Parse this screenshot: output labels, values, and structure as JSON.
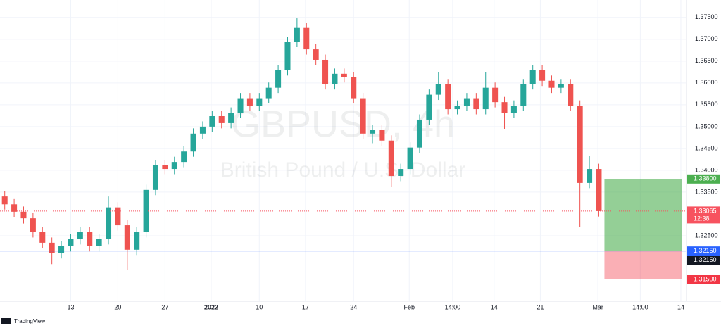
{
  "chart_data": {
    "type": "candlestick",
    "title": "GBPUSD, 4h",
    "subtitle": "British Pound / U.S. Dollar",
    "x": [
      0.5,
      1.5,
      2.5,
      3.5,
      4.5,
      5.5,
      6.5,
      7.5,
      8.5,
      9.5,
      10.5,
      11.5,
      12.5,
      13.5,
      14.5,
      15.5,
      16.5,
      17.5,
      18.5,
      19.5,
      20.5,
      21.5,
      22.5,
      23.5,
      24.5,
      25.5,
      26.5,
      27.5,
      28.5,
      29.5,
      30.5,
      31.5,
      32.5,
      33.5,
      34.5,
      35.5,
      36.5,
      37.5,
      38.5,
      39.5,
      40.5,
      41.5,
      42.5,
      43.5,
      44.5,
      45.5,
      46.5,
      47.5,
      48.5,
      49.5,
      50.5,
      51.5,
      52.5,
      53.5,
      54.5,
      55.5,
      56.5,
      57.5,
      58.5,
      59.5,
      60.5,
      61.5,
      62.5,
      63.5
    ],
    "open": [
      1.334,
      1.3322,
      1.3305,
      1.329,
      1.3258,
      1.3234,
      1.321,
      1.3226,
      1.3242,
      1.3258,
      1.3226,
      1.3242,
      1.3315,
      1.3274,
      1.3218,
      1.3258,
      1.3355,
      1.3412,
      1.3403,
      1.3419,
      1.3443,
      1.3484,
      1.35,
      1.3524,
      1.3508,
      1.3532,
      1.3565,
      1.3548,
      1.3565,
      1.3589,
      1.3629,
      1.3694,
      1.3726,
      1.3677,
      1.3653,
      1.3597,
      1.3621,
      1.3613,
      1.3565,
      1.3484,
      1.3492,
      1.3468,
      1.3387,
      1.3403,
      1.3452,
      1.3516,
      1.3573,
      1.3597,
      1.354,
      1.3548,
      1.3565,
      1.354,
      1.3589,
      1.3556,
      1.3532,
      1.3548,
      1.3597,
      1.3629,
      1.3605,
      1.3589,
      1.3597,
      1.3548,
      1.3371,
      1.3403
    ],
    "high": [
      1.3352,
      1.3334,
      1.3317,
      1.3302,
      1.327,
      1.3246,
      1.3238,
      1.3254,
      1.327,
      1.327,
      1.3254,
      1.334,
      1.3327,
      1.3286,
      1.327,
      1.3367,
      1.3424,
      1.3424,
      1.3431,
      1.3455,
      1.3496,
      1.3512,
      1.3536,
      1.3536,
      1.3544,
      1.3577,
      1.3577,
      1.3577,
      1.3601,
      1.3641,
      1.3706,
      1.3748,
      1.3738,
      1.3689,
      1.3665,
      1.3633,
      1.3633,
      1.3625,
      1.3577,
      1.3504,
      1.3504,
      1.348,
      1.3415,
      1.3464,
      1.3528,
      1.3585,
      1.3625,
      1.3609,
      1.356,
      1.3577,
      1.3577,
      1.3625,
      1.3601,
      1.3568,
      1.356,
      1.3609,
      1.3641,
      1.3641,
      1.3617,
      1.3609,
      1.3609,
      1.356,
      1.3433,
      1.3415
    ],
    "low": [
      1.331,
      1.3293,
      1.3278,
      1.3246,
      1.3222,
      1.3185,
      1.3198,
      1.3214,
      1.323,
      1.3214,
      1.3214,
      1.323,
      1.3262,
      1.3172,
      1.3206,
      1.3246,
      1.3343,
      1.3391,
      1.3391,
      1.3407,
      1.3431,
      1.3472,
      1.3488,
      1.3496,
      1.3496,
      1.352,
      1.3536,
      1.3536,
      1.3553,
      1.3577,
      1.3617,
      1.3682,
      1.3665,
      1.3641,
      1.3585,
      1.3585,
      1.3601,
      1.3553,
      1.3472,
      1.3462,
      1.3456,
      1.3362,
      1.3375,
      1.3391,
      1.344,
      1.3504,
      1.3561,
      1.3528,
      1.3528,
      1.3536,
      1.3528,
      1.3528,
      1.3544,
      1.3495,
      1.352,
      1.3536,
      1.3585,
      1.3593,
      1.3577,
      1.3577,
      1.3536,
      1.327,
      1.3359,
      1.3294
    ],
    "close": [
      1.3322,
      1.3305,
      1.329,
      1.3258,
      1.3234,
      1.321,
      1.3226,
      1.3242,
      1.3258,
      1.3226,
      1.3242,
      1.3315,
      1.3274,
      1.3218,
      1.3258,
      1.3355,
      1.3412,
      1.3403,
      1.3419,
      1.3443,
      1.3484,
      1.35,
      1.3524,
      1.3508,
      1.3532,
      1.3565,
      1.3548,
      1.3565,
      1.3589,
      1.3629,
      1.3694,
      1.3726,
      1.3677,
      1.3653,
      1.3597,
      1.3621,
      1.3613,
      1.3565,
      1.3484,
      1.3492,
      1.3468,
      1.3387,
      1.3403,
      1.3452,
      1.3516,
      1.3573,
      1.3597,
      1.354,
      1.3548,
      1.3565,
      1.354,
      1.3589,
      1.3556,
      1.3532,
      1.3548,
      1.3597,
      1.3629,
      1.3605,
      1.3589,
      1.3597,
      1.3548,
      1.3371,
      1.3403,
      1.33065
    ],
    "up_color": "#26a69a",
    "down_color": "#ef5350",
    "xlim": [
      0,
      72.8
    ],
    "xticks": [
      {
        "value": 7.5,
        "label": "13"
      },
      {
        "value": 12.5,
        "label": "20"
      },
      {
        "value": 17.5,
        "label": "27"
      },
      {
        "value": 22.4,
        "label": "2022"
      },
      {
        "value": 27.5,
        "label": "10"
      },
      {
        "value": 32.4,
        "label": "17"
      },
      {
        "value": 37.5,
        "label": "24"
      },
      {
        "value": 43.4,
        "label": "Feb"
      },
      {
        "value": 48,
        "label": "14:00"
      },
      {
        "value": 52.4,
        "label": "14"
      },
      {
        "value": 57.3,
        "label": "21"
      },
      {
        "value": 63.4,
        "label": "Mar"
      },
      {
        "value": 67.9,
        "label": "14:00"
      },
      {
        "value": 72.2,
        "label": "14"
      }
    ],
    "ylim": [
      1.31,
      1.379
    ],
    "yticks": [
      {
        "value": 1.375,
        "label": "1.37500"
      },
      {
        "value": 1.37,
        "label": "1.37000"
      },
      {
        "value": 1.365,
        "label": "1.36500"
      },
      {
        "value": 1.36,
        "label": "1.36000"
      },
      {
        "value": 1.355,
        "label": "1.35500"
      },
      {
        "value": 1.35,
        "label": "1.35000"
      },
      {
        "value": 1.345,
        "label": "1.34500"
      },
      {
        "value": 1.34,
        "label": "1.34000"
      },
      {
        "value": 1.335,
        "label": "1.33500"
      },
      {
        "value": 1.325,
        "label": "1.32500"
      }
    ],
    "grid": true,
    "current_price": {
      "value": 1.33065,
      "label": "1.33065",
      "color": "#f7525f"
    },
    "countdown": "12:38",
    "position": {
      "target": {
        "value": 1.338,
        "label": "1.33800",
        "color": "#4caf50"
      },
      "entry": {
        "value": 1.3215,
        "label": "1.32150",
        "color": "#2962ff"
      },
      "stop": {
        "value": 1.315,
        "label": "1.31500",
        "color": "#f23645"
      }
    },
    "brand": "TradingView"
  }
}
